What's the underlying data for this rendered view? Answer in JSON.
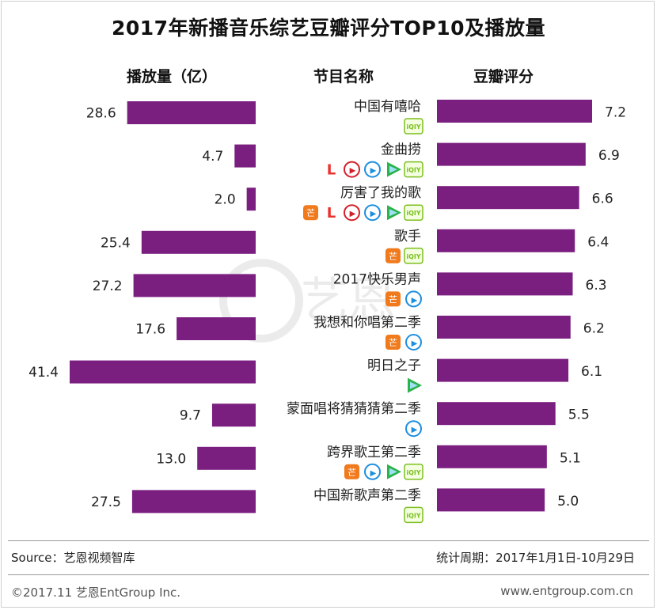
{
  "title": "2017年新播音乐综艺豆瓣评分TOP10及播放量",
  "headers": {
    "views": "播放量（亿）",
    "name": "节目名称",
    "score": "豆瓣评分"
  },
  "chart_data": {
    "type": "bar",
    "title": "2017年新播音乐综艺豆瓣评分TOP10及播放量",
    "categories": [
      "中国有嘻哈",
      "金曲捞",
      "厉害了我的歌",
      "歌手",
      "2017快乐男声",
      "我想和你唱第二季",
      "明日之子",
      "蒙面唱将猜猜猜第二季",
      "跨界歌王第二季",
      "中国新歌声第二季"
    ],
    "series": [
      {
        "name": "播放量（亿）",
        "values": [
          28.6,
          4.7,
          2.0,
          25.4,
          27.2,
          17.6,
          41.4,
          9.7,
          13.0,
          27.5
        ],
        "labels": [
          "28.6",
          "4.7",
          "2.0",
          "25.4",
          "27.2",
          "17.6",
          "41.4",
          "9.7",
          "13.0",
          "27.5"
        ]
      },
      {
        "name": "豆瓣评分",
        "values": [
          7.2,
          6.9,
          6.6,
          6.4,
          6.3,
          6.2,
          6.1,
          5.5,
          5.1,
          5.0
        ],
        "labels": [
          "7.2",
          "6.9",
          "6.6",
          "6.4",
          "6.3",
          "6.2",
          "6.1",
          "5.5",
          "5.1",
          "5.0"
        ]
      }
    ],
    "platforms": [
      [
        "iqiyi"
      ],
      [
        "letv",
        "youku",
        "tencent",
        "pptv",
        "iqiyi"
      ],
      [
        "mango",
        "letv",
        "youku",
        "tencent",
        "pptv",
        "iqiyi"
      ],
      [
        "mango",
        "iqiyi"
      ],
      [
        "mango",
        "tencent"
      ],
      [
        "mango",
        "tencent"
      ],
      [
        "pptv"
      ],
      [
        "tencent"
      ],
      [
        "mango",
        "tencent",
        "pptv",
        "iqiyi"
      ],
      [
        "iqiyi"
      ]
    ],
    "platform_glyphs": {
      "iqiyi": "iQIY",
      "letv": "L",
      "youku": "▶",
      "tencent": "▶",
      "pptv": "▶",
      "mango": "芒"
    },
    "platform_colors": {
      "iqiyi": "#7cbf1d",
      "letv": "#e8322b",
      "youku": "#d4202a",
      "tencent": "#1d8fe0",
      "pptv": "#2ab34a",
      "mango": "#f07a1c"
    },
    "bar_color": "#7a1f7f"
  },
  "watermark": "艺恩",
  "footer": {
    "source": "Source：艺恩视频智库",
    "period": "统计周期：2017年1月1日-10月29日",
    "copyright": "©2017.11  艺恩EntGroup Inc.",
    "website": "www.entgroup.com.cn"
  }
}
